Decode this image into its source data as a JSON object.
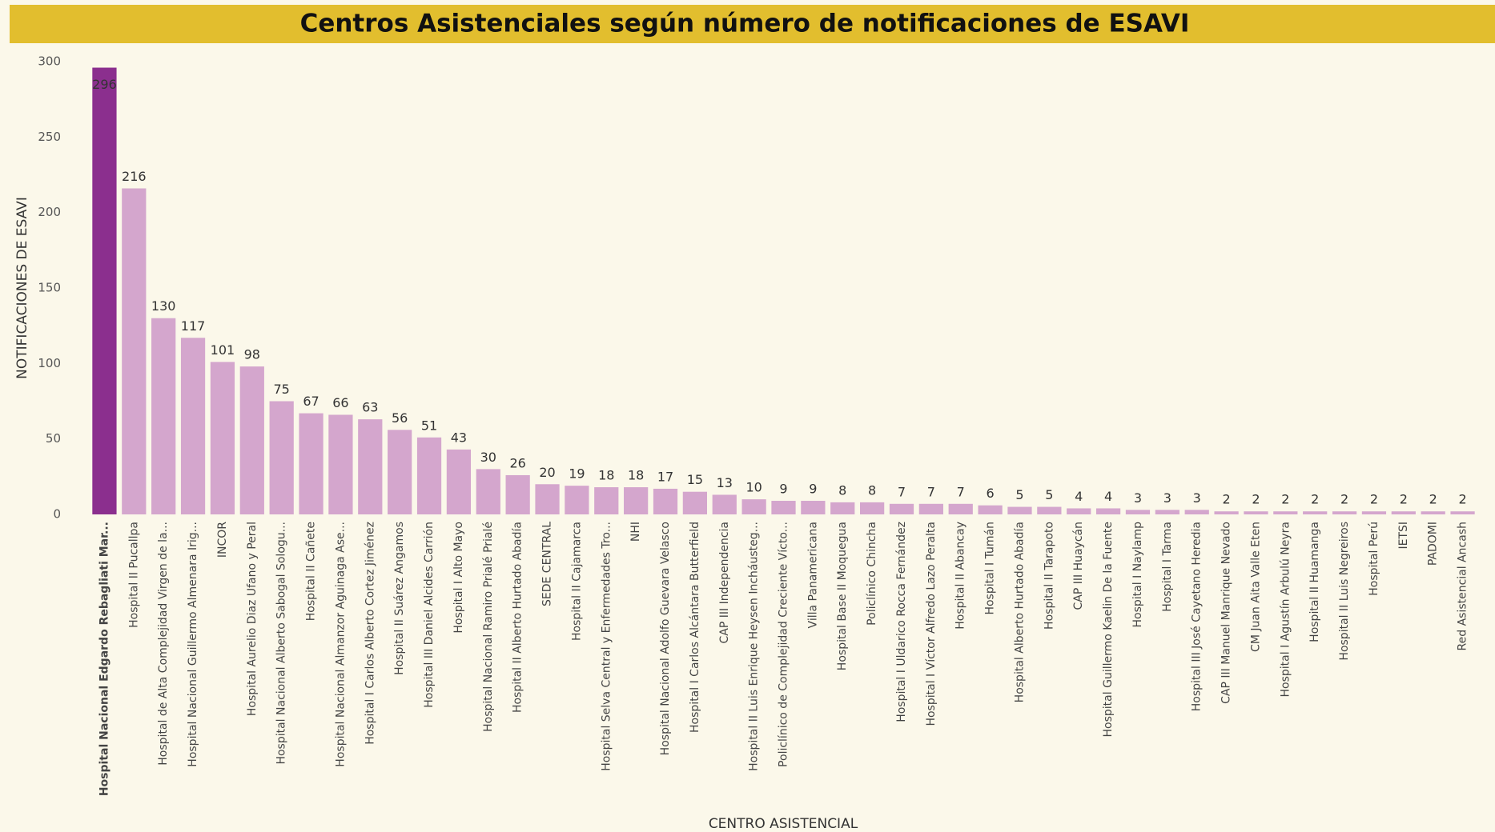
{
  "chart_data": {
    "type": "bar",
    "title": "Centros Asistenciales según número de notificaciones de ESAVI",
    "x_label": "CENTRO ASISTENCIAL",
    "y_label": "NOTIFICACIONES DE ESAVI",
    "categories": [
      "Hospital Nacional Edgardo Rebagliati Mar...",
      "Hospital II Pucallpa",
      "Hospital de Alta Complejidad Virgen de la...",
      "Hospital Nacional Guillermo Almenara Irig...",
      "INCOR",
      "Hospital Aurelio Diaz Ufano y Peral",
      "Hospital Nacional Alberto Sabogal Sologu...",
      "Hospital II Cañete",
      "Hospital Nacional Almanzor Aguinaga Ase...",
      "Hospital I Carlos Alberto Cortez Jiménez",
      "Hospital II Suárez Angamos",
      "Hospital III Daniel Alcides Carrión",
      "Hospital I Alto Mayo",
      "Hospital Nacional Ramiro Prialé Prialé",
      "Hospital II Alberto Hurtado Abadía",
      "SEDE CENTRAL",
      "Hospital II Cajamarca",
      "Hospital Selva Central y Enfermedades Tro...",
      "NHI",
      "Hospital Nacional Adolfo Guevara Velasco",
      "Hospital I Carlos Alcántara Butterfield",
      "CAP III Independencia",
      "Hospital II Luis Enrique Heysen Incháusteg...",
      "Policlínico de Complejidad Creciente Vícto...",
      "Villa Panamericana",
      "Hospital Base II Moquegua",
      "Policlínico Chincha",
      "Hospital I Uldarico Rocca Fernández",
      "Hospital I Víctor Alfredo Lazo Peralta",
      "Hospital II Abancay",
      "Hospital I Tumán",
      "Hospital Alberto Hurtado Abadía",
      "Hospital II Tarapoto",
      "CAP III Huaycán",
      "Hospital Guillermo Kaelin De la Fuente",
      "Hospital I Naylamp",
      "Hospital I Tarma",
      "Hospital III José Cayetano Heredia",
      "CAP III Manuel Manrique Nevado",
      "CM Juan Aita Valle Eten",
      "Hospital I Agustín Arbulú Neyra",
      "Hospital II Huamanga",
      "Hospital II Luis Negreiros",
      "Hospital Perú",
      "IETSI",
      "PADOMI",
      "Red Asistencial Ancash"
    ],
    "values": [
      296,
      216,
      130,
      117,
      101,
      98,
      75,
      67,
      66,
      63,
      56,
      51,
      43,
      30,
      26,
      20,
      19,
      18,
      18,
      17,
      15,
      13,
      10,
      9,
      9,
      8,
      8,
      7,
      7,
      7,
      6,
      5,
      5,
      4,
      4,
      3,
      3,
      3,
      2,
      2,
      2,
      2,
      2,
      2,
      2,
      2,
      2
    ],
    "color": "#d4a6cd",
    "highlight_color": "#8b2f8e",
    "ylim": [
      0,
      300
    ],
    "yticks": [
      0,
      50,
      100,
      150,
      200,
      250,
      300
    ],
    "grid": false
  }
}
